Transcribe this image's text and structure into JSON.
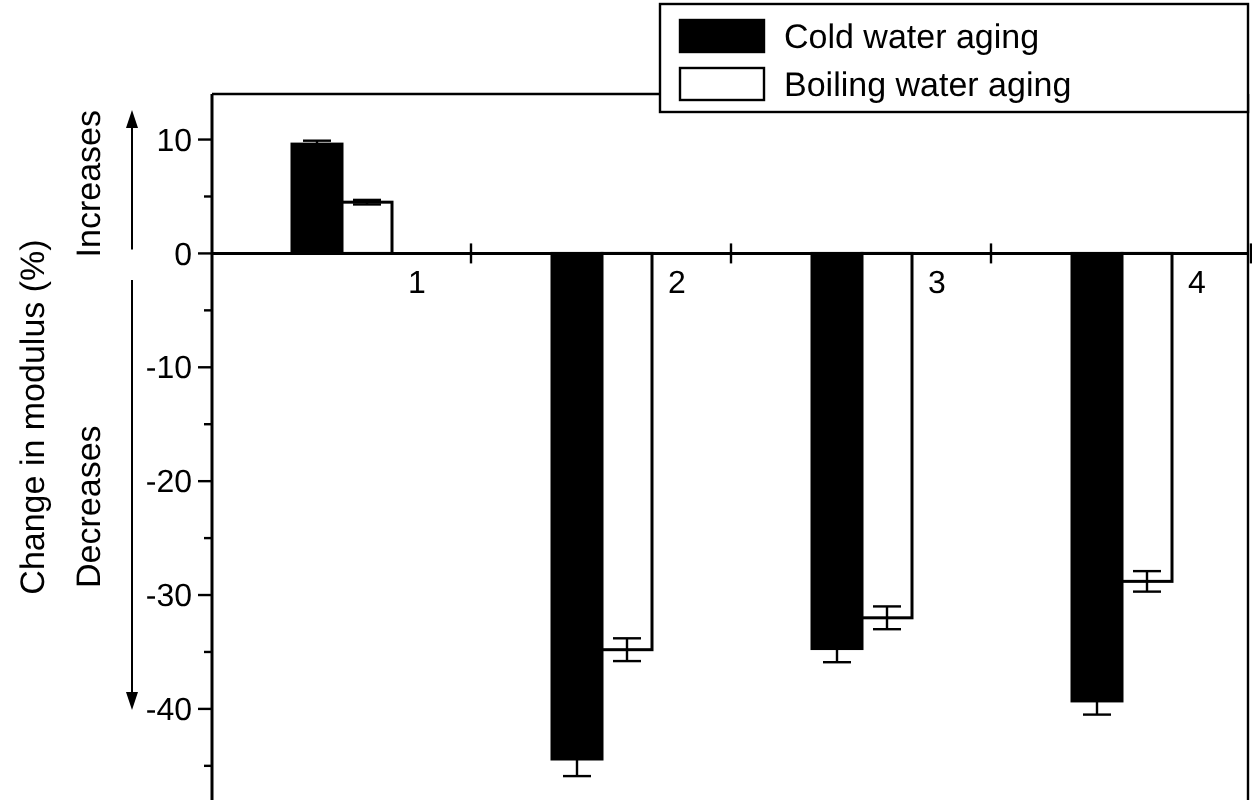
{
  "chart_data": {
    "type": "bar",
    "ylabel": "Change in modulus (%)",
    "annotations": [
      "Increases",
      "Decreases"
    ],
    "categories": [
      "1",
      "2",
      "3",
      "4"
    ],
    "series": [
      {
        "name": "Cold water aging",
        "color": "#000000",
        "values": [
          9.6,
          -44.4,
          -34.7,
          -39.3
        ],
        "errors": [
          0.3,
          1.5,
          1.2,
          1.2
        ]
      },
      {
        "name": "Boiling water aging",
        "color": "#ffffff",
        "values": [
          4.5,
          -34.8,
          -32.0,
          -28.8
        ],
        "errors": [
          0.2,
          1.0,
          1.0,
          0.9
        ]
      }
    ],
    "ylim": [
      -48,
      14
    ],
    "yticks": [
      -40,
      {
        "value": -35,
        "label": null
      },
      -30,
      {
        "value": -25,
        "label": null
      },
      -20,
      {
        "value": -15,
        "label": null
      },
      -10,
      {
        "value": -5,
        "label": null
      },
      0,
      {
        "value": 5,
        "label": null
      },
      10,
      {
        "value": -45,
        "label": null
      }
    ],
    "legend": "top right"
  }
}
